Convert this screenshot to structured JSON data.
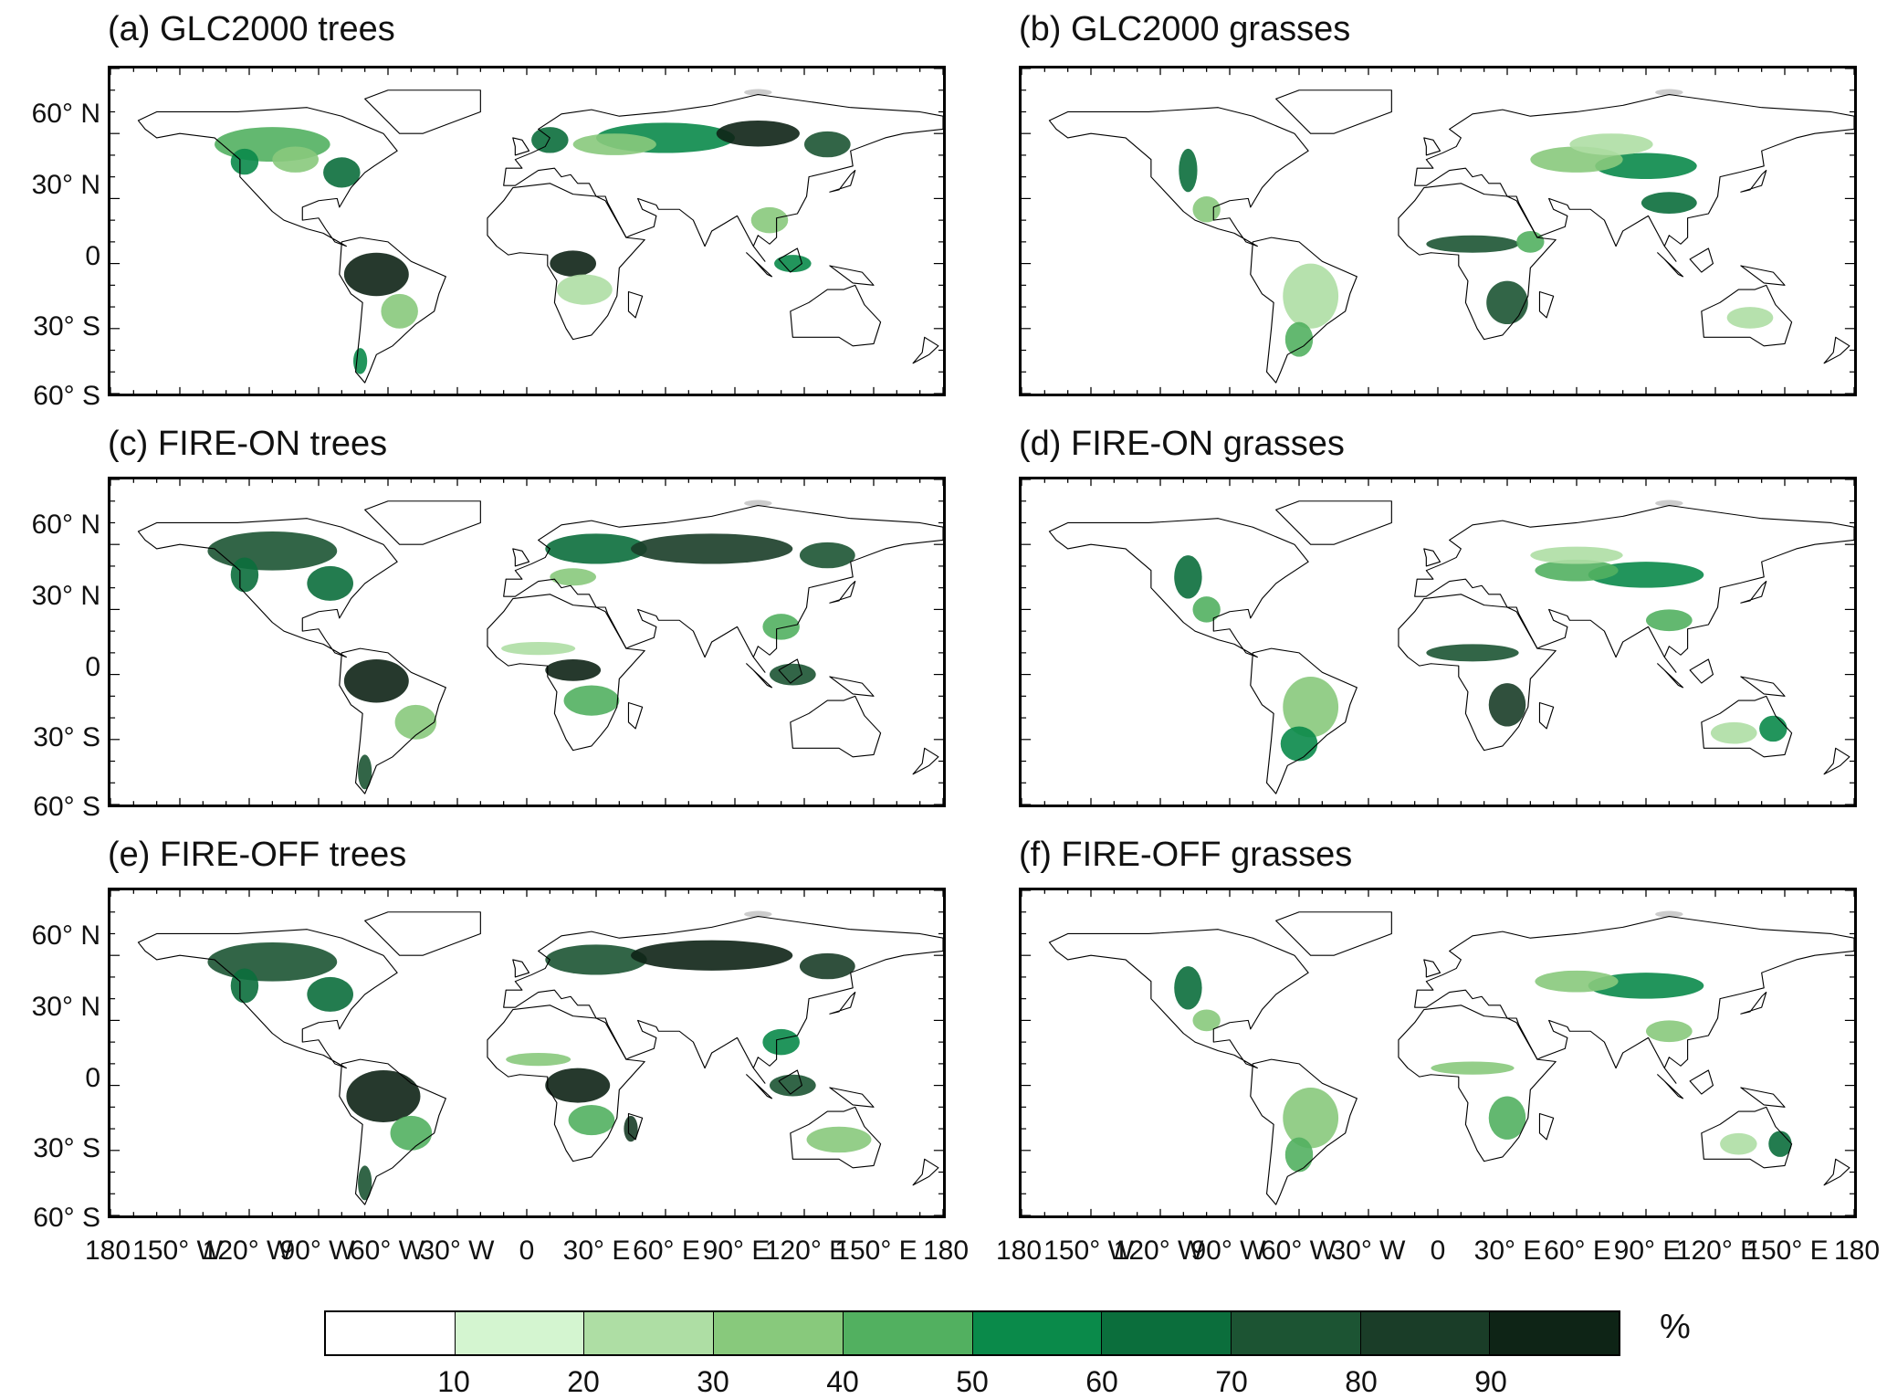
{
  "panels": [
    {
      "title": "(a) GLC2000 trees",
      "variable": "trees",
      "dataset": "GLC2000"
    },
    {
      "title": "(b) GLC2000 grasses",
      "variable": "grasses",
      "dataset": "GLC2000"
    },
    {
      "title": "(c) FIRE-ON trees",
      "variable": "trees",
      "dataset": "FIRE-ON"
    },
    {
      "title": "(d) FIRE-ON grasses",
      "variable": "grasses",
      "dataset": "FIRE-ON"
    },
    {
      "title": "(e) FIRE-OFF trees",
      "variable": "trees",
      "dataset": "FIRE-OFF"
    },
    {
      "title": "(f) FIRE-OFF grasses",
      "variable": "grasses",
      "dataset": "FIRE-OFF"
    }
  ],
  "lat_labels": [
    "60° N",
    "30° N",
    "0",
    "30° S",
    "60° S"
  ],
  "lon_labels": [
    "180",
    "150° W",
    "120° W",
    "90° W",
    "60° W",
    "30° W",
    "0",
    "30° E",
    "60° E",
    "90° E",
    "120° E",
    "150° E",
    "180"
  ],
  "colorbar": {
    "unit": "%",
    "labels": [
      "10",
      "20",
      "30",
      "40",
      "50",
      "60",
      "70",
      "80",
      "90"
    ],
    "colors": [
      "#ffffff",
      "#d4f5d0",
      "#aedea4",
      "#88c97c",
      "#52b060",
      "#0a8a4a",
      "#0b6e3c",
      "#1c5433",
      "#1a3d28",
      "#0e2416"
    ]
  }
}
